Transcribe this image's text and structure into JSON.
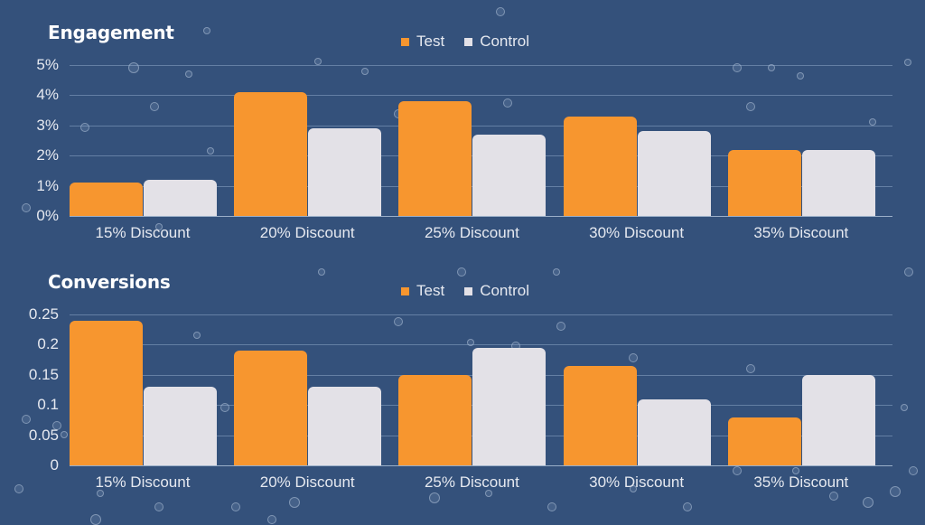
{
  "colors": {
    "background": "#34517b",
    "test": "#f7962f",
    "control": "#e3e1e7"
  },
  "legend": [
    {
      "label": "Test",
      "color": "#f7962f"
    },
    {
      "label": "Control",
      "color": "#e3e1e7"
    }
  ],
  "chart_data": [
    {
      "type": "bar",
      "title": "Engagement",
      "categories": [
        "15% Discount",
        "20% Discount",
        "25% Discount",
        "30% Discount",
        "35% Discount"
      ],
      "series": [
        {
          "name": "Test",
          "values": [
            1.1,
            4.1,
            3.8,
            3.3,
            2.2
          ]
        },
        {
          "name": "Control",
          "values": [
            1.2,
            2.9,
            2.7,
            2.8,
            2.2
          ]
        }
      ],
      "yticks": [
        "0%",
        "1%",
        "2%",
        "3%",
        "4%",
        "5%"
      ],
      "ylim": [
        0,
        5
      ],
      "unit": "%",
      "xlabel": "",
      "ylabel": "",
      "grid": true,
      "legend_position": "top"
    },
    {
      "type": "bar",
      "title": "Conversions",
      "categories": [
        "15% Discount",
        "20% Discount",
        "25% Discount",
        "30% Discount",
        "35% Discount"
      ],
      "series": [
        {
          "name": "Test",
          "values": [
            0.24,
            0.19,
            0.15,
            0.165,
            0.08
          ]
        },
        {
          "name": "Control",
          "values": [
            0.13,
            0.13,
            0.195,
            0.11,
            0.15
          ]
        }
      ],
      "yticks": [
        "0",
        "0.05",
        "0.1",
        "0.15",
        "0.2",
        "0.25"
      ],
      "ylim": [
        0,
        0.25
      ],
      "xlabel": "",
      "ylabel": "",
      "grid": true,
      "legend_position": "top"
    }
  ]
}
